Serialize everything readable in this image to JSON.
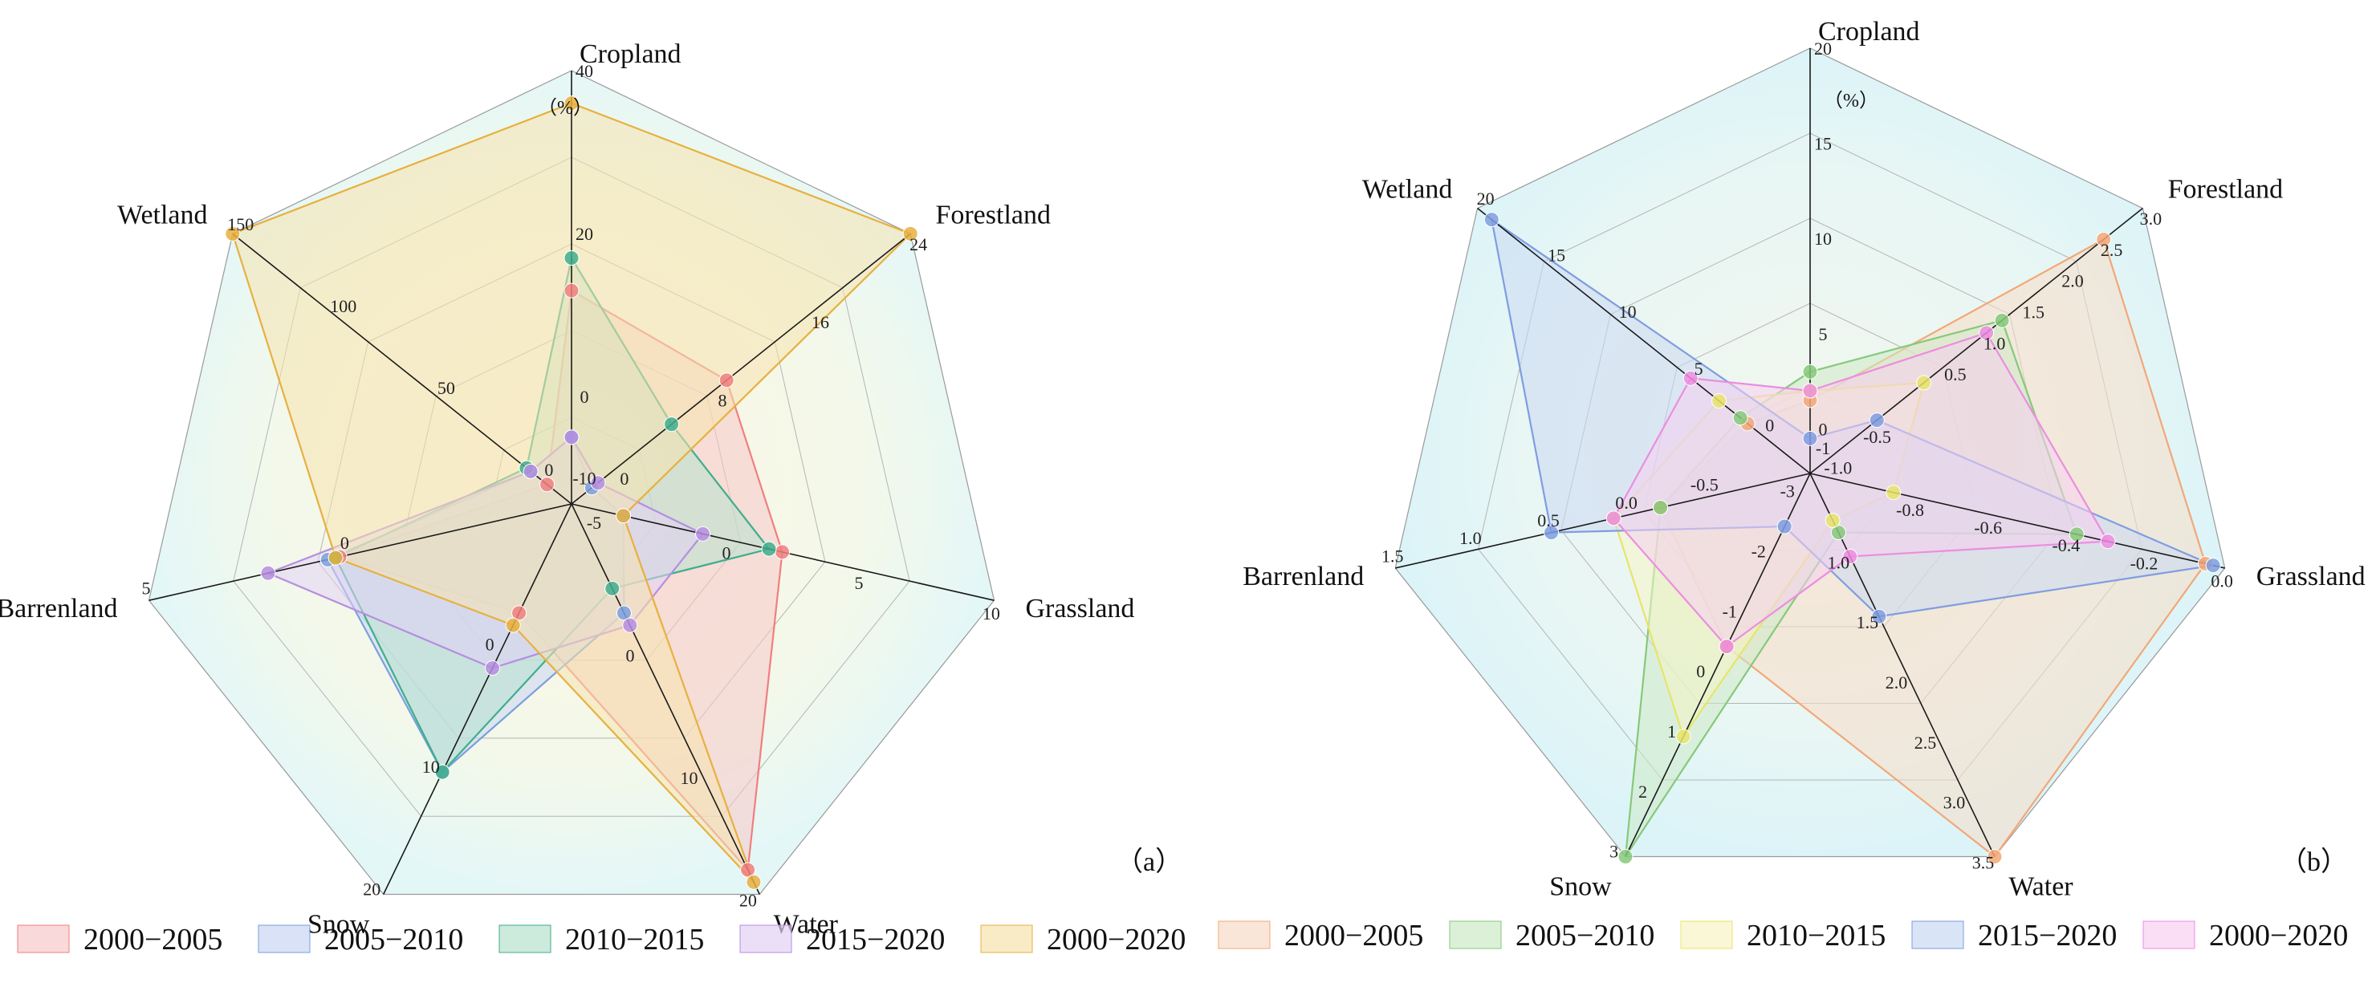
{
  "chart_data": [
    {
      "type": "radar",
      "panel_label": "（a）",
      "unit_label": "（%）",
      "axes": [
        {
          "name": "Cropland",
          "range": [
            -10,
            40
          ],
          "ticks": [
            "40",
            "20",
            "0",
            "-10"
          ]
        },
        {
          "name": "Forestland",
          "range": [
            -2,
            24
          ],
          "ticks": [
            "24",
            "16",
            "8",
            "0"
          ]
        },
        {
          "name": "Grassland",
          "range": [
            -5,
            10
          ],
          "ticks": [
            "-5",
            "0",
            "5",
            "10"
          ]
        },
        {
          "name": "Water",
          "range": [
            -10,
            20
          ],
          "ticks": [
            "0",
            "10",
            "20"
          ]
        },
        {
          "name": "Snow",
          "range": [
            -10,
            20
          ],
          "ticks": [
            "0",
            "10",
            "20"
          ]
        },
        {
          "name": "Barrenland",
          "range": [
            -5,
            5
          ],
          "ticks": [
            "0",
            "5"
          ]
        },
        {
          "name": "Wetland",
          "range": [
            -5,
            150
          ],
          "ticks": [
            "0",
            "50",
            "100",
            "150"
          ]
        }
      ],
      "series": [
        {
          "name": "2000−2005",
          "color": "#f07f7f",
          "fill": "#f6c9c9",
          "values": [
            13,
            9,
            2,
            18,
            -3,
            0.2,
            -3
          ]
        },
        {
          "name": "2005−2010",
          "color": "#7aa0de",
          "fill": "#c9d6f2",
          "values": [
            -5,
            -2,
            -4,
            -3,
            10,
            0.5,
            5
          ]
        },
        {
          "name": "2010−2015",
          "color": "#3fae8c",
          "fill": "#b7e2cf",
          "values": [
            17,
            4.5,
            1.5,
            -5,
            10,
            0.3,
            7
          ]
        },
        {
          "name": "2015−2020",
          "color": "#b68ee0",
          "fill": "#e2d2f5",
          "values": [
            -5,
            -1.5,
            -1,
            -2,
            1.5,
            2,
            5
          ]
        },
        {
          "name": "2000−2020",
          "color": "#e8b040",
          "fill": "#f5e3ae",
          "values": [
            36,
            24,
            -4,
            19,
            -2,
            0.3,
            150
          ]
        }
      ],
      "legend": [
        "2000−2005",
        "2005−2010",
        "2010−2015",
        "2015−2020",
        "2000−2020"
      ]
    },
    {
      "type": "radar",
      "panel_label": "（b）",
      "unit_label": "（%）",
      "axes": [
        {
          "name": "Cropland",
          "range": [
            -1,
            20
          ],
          "ticks": [
            "20",
            "15",
            "10",
            "5",
            "0",
            "-1"
          ]
        },
        {
          "name": "Forestland",
          "range": [
            -1.0,
            3.0
          ],
          "ticks": [
            "3.0",
            "2.5",
            "2.0",
            "1.5",
            "1.0",
            "0.5",
            "-0.5",
            "-1.0"
          ]
        },
        {
          "name": "Grassland",
          "range": [
            -1.0,
            0.0
          ],
          "ticks": [
            "-0.8",
            "-0.6",
            "-0.4",
            "-0.2",
            "0.0"
          ]
        },
        {
          "name": "Water",
          "range": [
            0.5,
            3.5
          ],
          "ticks": [
            "1.0",
            "1.5",
            "2.0",
            "2.5",
            "3.0",
            "3.5"
          ]
        },
        {
          "name": "Snow",
          "range": [
            -3,
            3
          ],
          "ticks": [
            "-3",
            "-2",
            "-1",
            "0",
            "1",
            "2",
            "3"
          ]
        },
        {
          "name": "Barrenland",
          "range": [
            -1.0,
            1.5
          ],
          "ticks": [
            "-0.5",
            "0.0",
            "0.5",
            "1.0",
            "1.5"
          ]
        },
        {
          "name": "Wetland",
          "range": [
            -2,
            20
          ],
          "ticks": [
            "0",
            "5",
            "10",
            "15",
            "20"
          ]
        }
      ],
      "series": [
        {
          "name": "2000−2005",
          "color": "#f2a878",
          "fill": "#f8dcc7",
          "values": [
            1.5,
            2.5,
            -0.05,
            3.5,
            -0.5,
            -0.2,
            1
          ]
        },
        {
          "name": "2005−2010",
          "color": "#86c97a",
          "fill": "#cdeac6",
          "values": [
            3,
            1.2,
            -0.38,
            0.8,
            3,
            -0.2,
            1.5
          ]
        },
        {
          "name": "2010−2015",
          "color": "#e8e46a",
          "fill": "#f6f4c4",
          "values": [
            2,
            0.2,
            -0.85,
            0.7,
            1,
            0.1,
            3
          ]
        },
        {
          "name": "2015−2020",
          "color": "#7f9de0",
          "fill": "#cbd8f3",
          "values": [
            -0.5,
            -0.4,
            -0.03,
            1.5,
            -2.5,
            0.5,
            19
          ]
        },
        {
          "name": "2000−2020",
          "color": "#ec8de0",
          "fill": "#f6d0f1",
          "values": [
            2,
            1,
            -0.3,
            1.0,
            -0.5,
            0.1,
            5
          ]
        }
      ],
      "legend": [
        "2000−2005",
        "2005−2010",
        "2010−2015",
        "2015−2020",
        "2000−2020"
      ]
    }
  ]
}
